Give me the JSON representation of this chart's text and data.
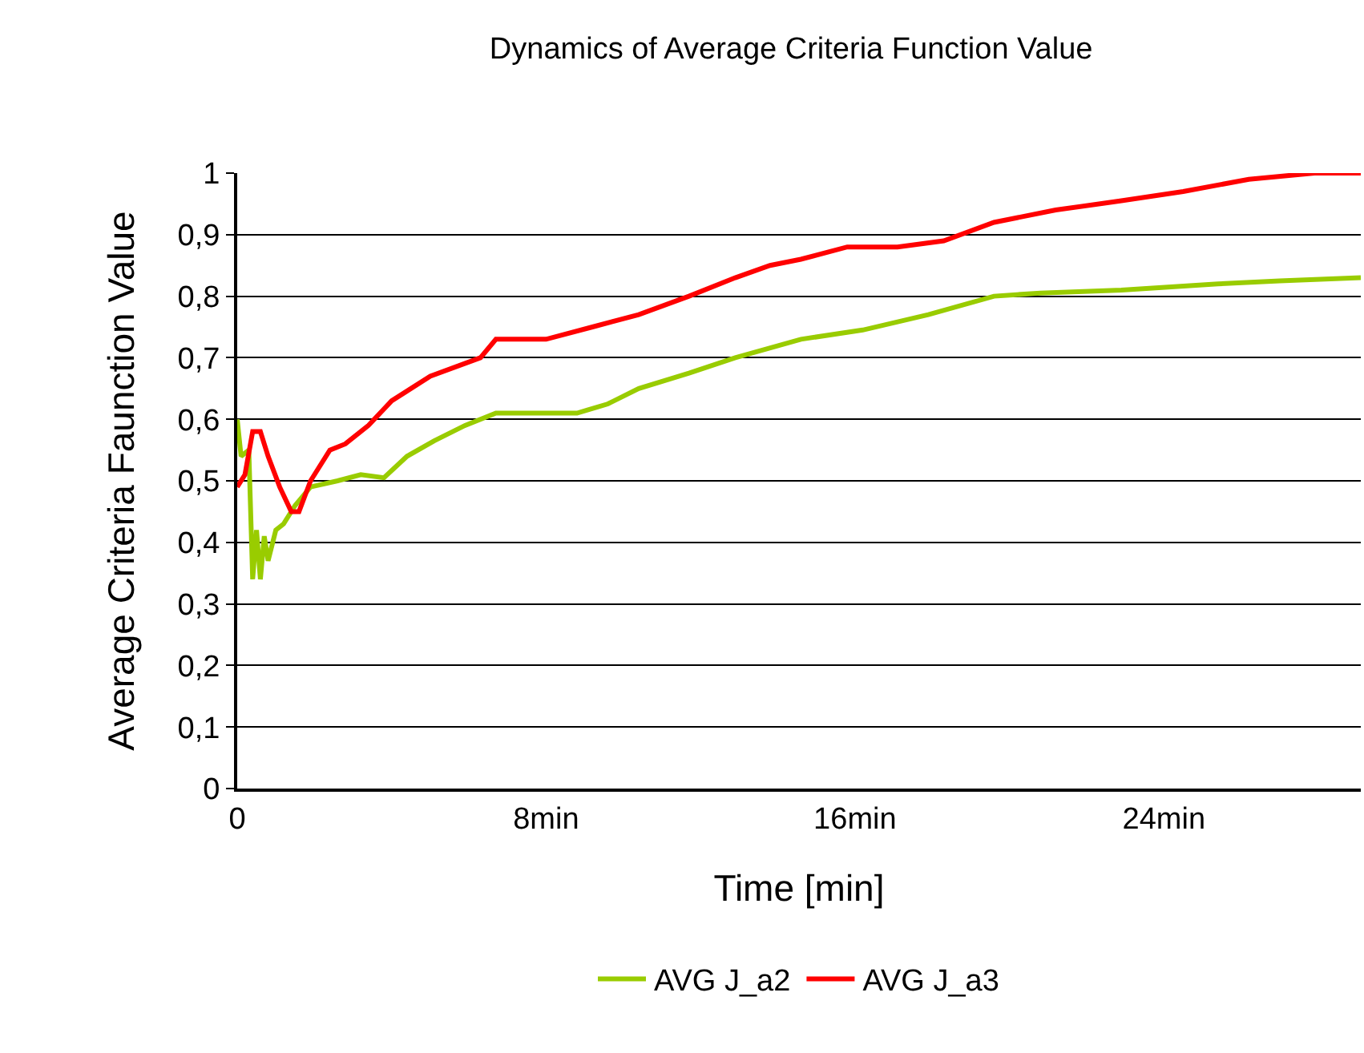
{
  "chart_data": {
    "type": "line",
    "title": "Dynamics of Average Criteria Function Value",
    "xlabel": "Time [min]",
    "ylabel": "Average Criteria Faunction Value",
    "xlim": [
      0,
      29.1
    ],
    "xticks": [
      0,
      {
        "value": 8,
        "label": "8min"
      },
      {
        "value": 16,
        "label": "16min"
      },
      {
        "value": 24,
        "label": "24min"
      }
    ],
    "ylim": [
      0,
      1
    ],
    "yticks": [
      0,
      {
        "value": 0.1,
        "label": "0,1"
      },
      {
        "value": 0.2,
        "label": "0,2"
      },
      {
        "value": 0.3,
        "label": "0,3"
      },
      {
        "value": 0.4,
        "label": "0,4"
      },
      {
        "value": 0.5,
        "label": "0,5"
      },
      {
        "value": 0.6,
        "label": "0,6"
      },
      {
        "value": 0.7,
        "label": "0,7"
      },
      {
        "value": 0.8,
        "label": "0,8"
      },
      {
        "value": 0.9,
        "label": "0,9"
      },
      1
    ],
    "grid": "y",
    "legend": "bottom",
    "line_style": "solid",
    "series": [
      {
        "name": "AVG J_a2",
        "color": "#99cc00",
        "x": [
          0,
          0.1,
          0.3,
          0.4,
          0.5,
          0.6,
          0.7,
          0.8,
          1.0,
          1.2,
          1.5,
          1.9,
          2.6,
          3.2,
          3.8,
          4.4,
          5.1,
          5.9,
          6.7,
          8.8,
          9.6,
          10.4,
          11.7,
          12.9,
          14.6,
          16.2,
          17.9,
          19.6,
          20.8,
          22.9,
          25.4,
          27.0,
          29.1
        ],
        "values": [
          0.6,
          0.54,
          0.55,
          0.34,
          0.42,
          0.34,
          0.41,
          0.37,
          0.42,
          0.43,
          0.46,
          0.49,
          0.5,
          0.51,
          0.505,
          0.54,
          0.565,
          0.59,
          0.61,
          0.61,
          0.625,
          0.65,
          0.675,
          0.7,
          0.73,
          0.745,
          0.77,
          0.8,
          0.805,
          0.81,
          0.82,
          0.825,
          0.83
        ]
      },
      {
        "name": "AVG J_a3",
        "color": "#ff0000",
        "x": [
          0,
          0.2,
          0.4,
          0.6,
          0.8,
          1.1,
          1.4,
          1.6,
          1.9,
          2.4,
          2.8,
          3.4,
          4.0,
          5.0,
          6.3,
          6.7,
          8.0,
          9.2,
          10.4,
          11.7,
          12.9,
          13.8,
          14.6,
          15.8,
          17.1,
          18.3,
          19.6,
          21.2,
          22.9,
          24.5,
          26.2,
          27.9,
          29.1
        ],
        "values": [
          0.49,
          0.51,
          0.58,
          0.58,
          0.54,
          0.49,
          0.45,
          0.45,
          0.5,
          0.55,
          0.56,
          0.59,
          0.63,
          0.67,
          0.7,
          0.73,
          0.73,
          0.75,
          0.77,
          0.8,
          0.83,
          0.85,
          0.86,
          0.88,
          0.88,
          0.89,
          0.92,
          0.94,
          0.955,
          0.97,
          0.99,
          1.0,
          1.0
        ]
      }
    ]
  }
}
